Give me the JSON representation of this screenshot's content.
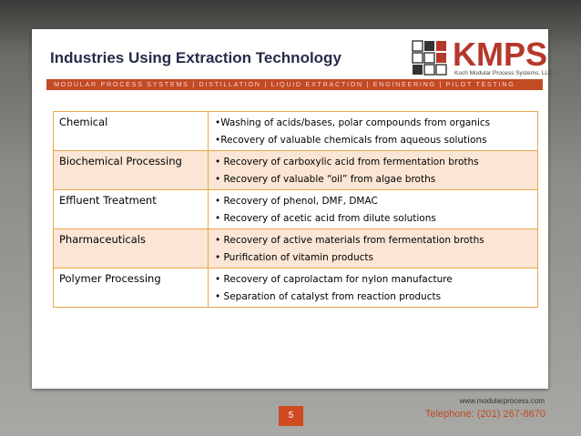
{
  "slide": {
    "title": "Industries Using Extraction Technology",
    "banner": "MODULAR PROCESS SYSTEMS | DISTILLATION | LIQUID EXTRACTION | ENGINEERING | PILOT TESTING"
  },
  "logo": {
    "name": "KMPS",
    "subtitle": "Koch Modular Process Systems, LLC."
  },
  "table": {
    "rows": [
      {
        "industry": "Chemical",
        "items": [
          "•Washing of acids/bases, polar compounds from organics",
          "•Recovery of valuable chemicals from aqueous solutions"
        ]
      },
      {
        "industry": "Biochemical Processing",
        "items": [
          "• Recovery of carboxylic acid from fermentation broths",
          "• Recovery of valuable “oil” from algae broths"
        ]
      },
      {
        "industry": "Effluent Treatment",
        "items": [
          "• Recovery of phenol, DMF, DMAC",
          "• Recovery of acetic acid from dilute solutions"
        ]
      },
      {
        "industry": "Pharmaceuticals",
        "items": [
          "• Recovery of active materials from fermentation broths",
          "• Purification of vitamin products"
        ]
      },
      {
        "industry": "Polymer Processing",
        "items": [
          "• Recovery of caprolactam for nylon manufacture",
          "• Separation of catalyst from reaction products"
        ]
      }
    ]
  },
  "footer": {
    "url": "www.modularprocess.com",
    "telephone": "Telephone: (201) 267-8670",
    "page_number": "5"
  },
  "colors": {
    "accent": "#c24a25",
    "title": "#262c49",
    "table_border": "#e8a84a",
    "row_alt": "#fbe5d4"
  }
}
